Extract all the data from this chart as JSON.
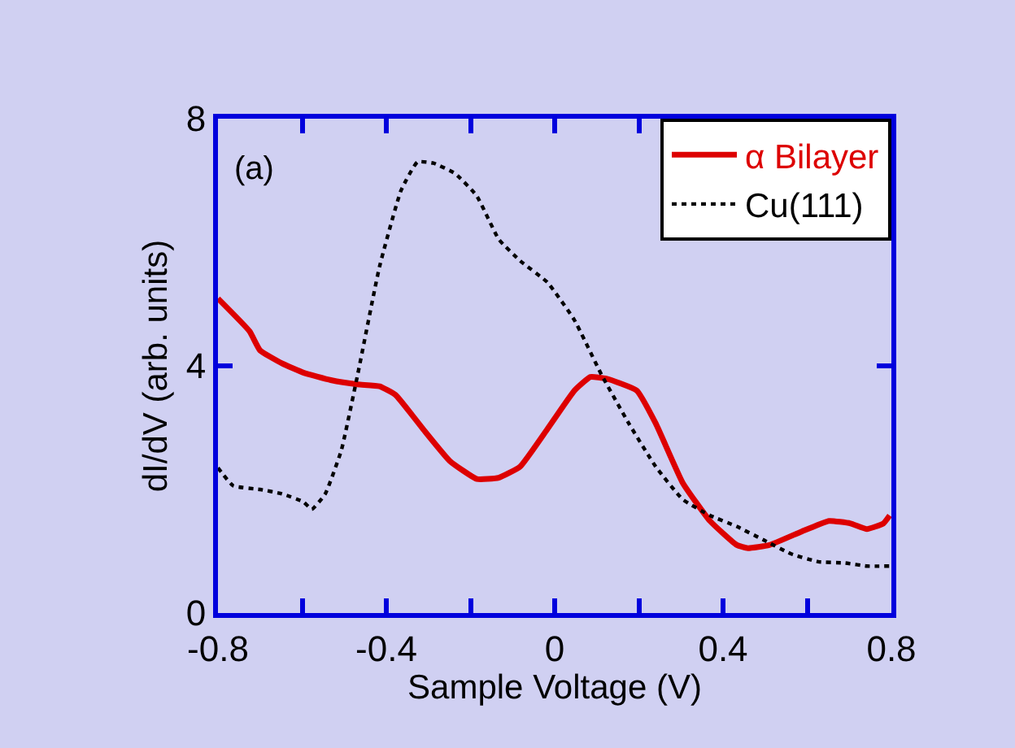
{
  "chart_data": {
    "type": "line",
    "xlabel": "Sample Voltage (V)",
    "ylabel": "dI/dV (arb. units)",
    "annotations": [
      "(a)"
    ],
    "xlim": [
      -0.8,
      0.8
    ],
    "xticks": [
      -0.8,
      {
        "value": -0.6,
        "label": null
      },
      -0.4,
      {
        "value": -0.2,
        "label": null
      },
      0,
      {
        "value": 0.2,
        "label": null
      },
      0.4,
      {
        "value": 0.6,
        "label": null
      },
      0.8
    ],
    "ylim": [
      0,
      8
    ],
    "yticks": [
      0,
      4,
      8
    ],
    "grid": false,
    "legend": "top right",
    "series": [
      {
        "name": "α Bilayer",
        "color": "#dd0000",
        "line_style": "solid",
        "x": [
          -0.8,
          -0.725,
          -0.7,
          -0.648,
          -0.597,
          -0.532,
          -0.468,
          -0.416,
          -0.378,
          -0.313,
          -0.249,
          -0.185,
          -0.133,
          -0.082,
          -0.017,
          0.047,
          0.085,
          0.124,
          0.195,
          0.24,
          0.304,
          0.369,
          0.433,
          0.459,
          0.51,
          0.587,
          0.652,
          0.703,
          0.742,
          0.781,
          0.796
        ],
        "values": [
          5.09,
          4.56,
          4.25,
          4.04,
          3.89,
          3.77,
          3.7,
          3.67,
          3.53,
          2.98,
          2.46,
          2.17,
          2.19,
          2.37,
          2.98,
          3.6,
          3.82,
          3.79,
          3.6,
          3.07,
          2.11,
          1.49,
          1.1,
          1.05,
          1.1,
          1.32,
          1.49,
          1.45,
          1.36,
          1.45,
          1.58
        ]
      },
      {
        "name": "Cu(111)",
        "color": "#000000",
        "line_style": "dotted",
        "x": [
          -0.8,
          -0.764,
          -0.7,
          -0.648,
          -0.597,
          -0.577,
          -0.545,
          -0.507,
          -0.468,
          -0.416,
          -0.365,
          -0.326,
          -0.288,
          -0.236,
          -0.185,
          -0.133,
          -0.082,
          -0.017,
          0.047,
          0.111,
          0.176,
          0.24,
          0.304,
          0.369,
          0.433,
          0.497,
          0.561,
          0.626,
          0.69,
          0.742,
          0.8
        ],
        "values": [
          2.35,
          2.06,
          2.0,
          1.93,
          1.8,
          1.68,
          1.93,
          2.63,
          3.86,
          5.61,
          6.84,
          7.3,
          7.28,
          7.11,
          6.75,
          6.05,
          5.7,
          5.35,
          4.74,
          3.86,
          3.07,
          2.37,
          1.84,
          1.58,
          1.4,
          1.18,
          0.96,
          0.83,
          0.81,
          0.76,
          0.76
        ]
      }
    ]
  }
}
